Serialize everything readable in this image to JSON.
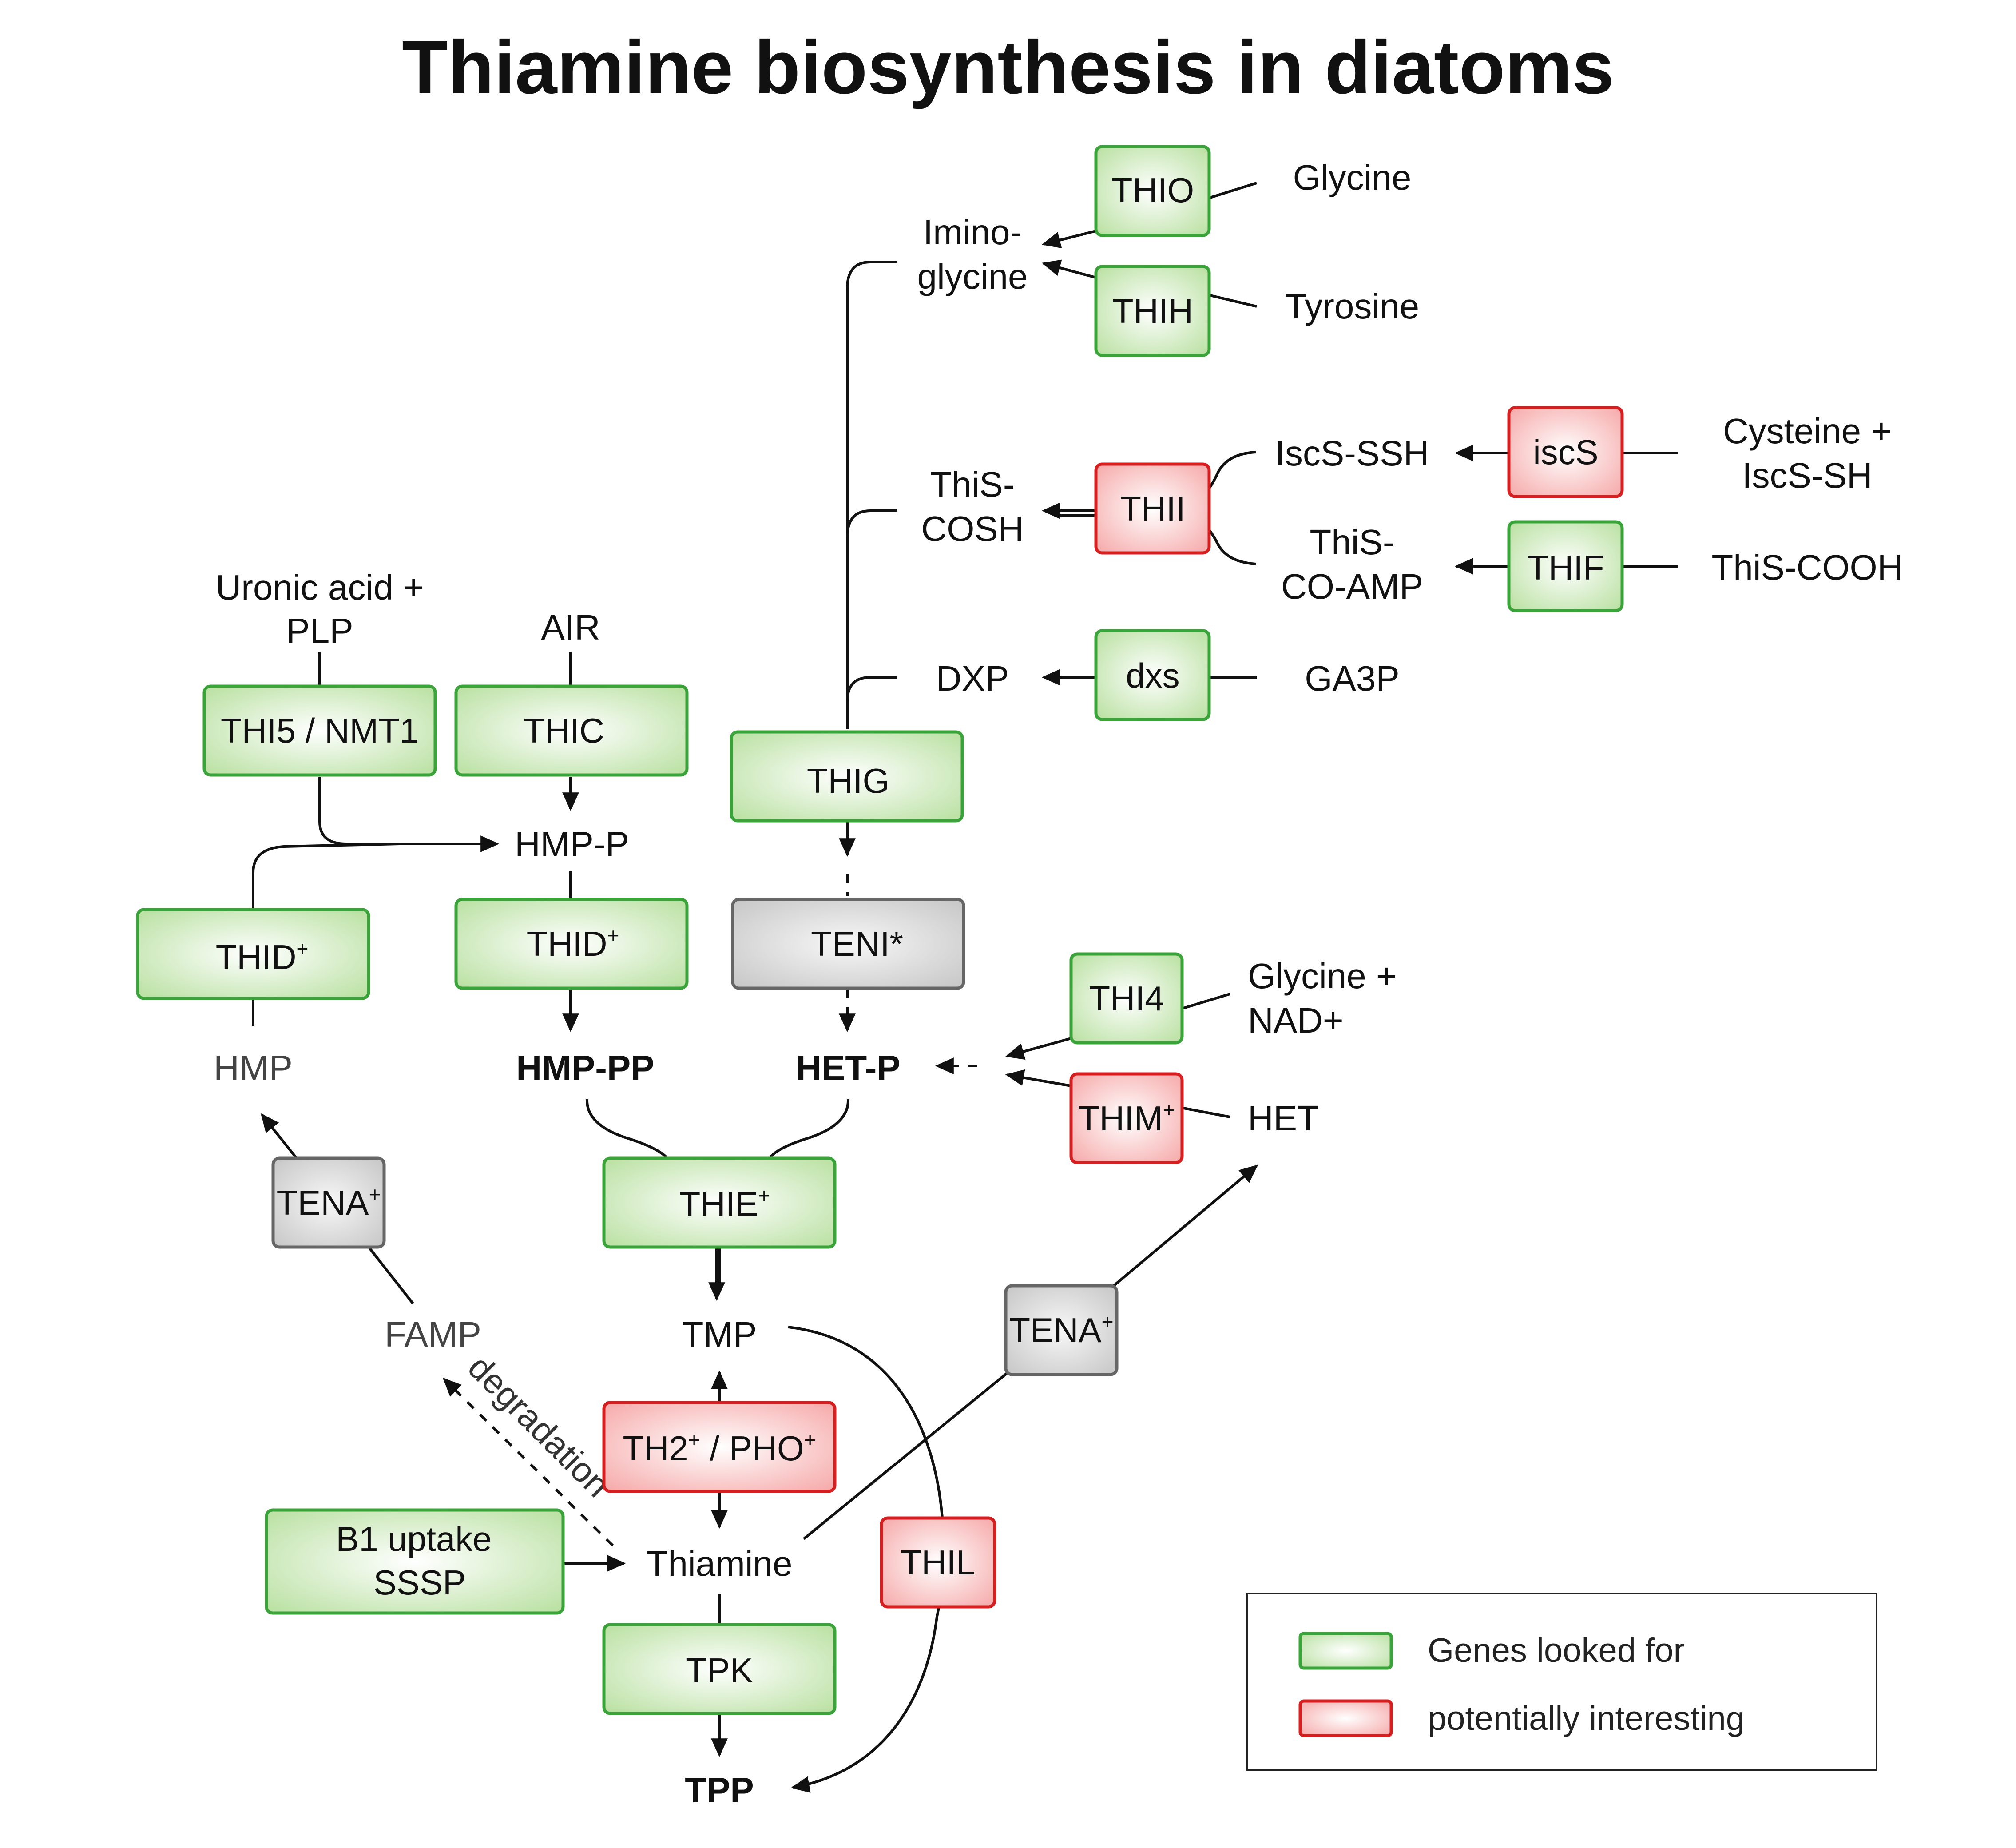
{
  "title": "Thiamine biosynthesis in diatoms",
  "colors": {
    "green_border": "#3aa33a",
    "green_fill_center": "#ffffff",
    "green_fill_edge": "#b8e0a0",
    "red_border": "#d42020",
    "red_fill_center": "#ffffff",
    "red_fill_edge": "#f6a8a8",
    "grey_border": "#666666",
    "grey_fill_center": "#f7f7f7",
    "grey_fill_edge": "#c6c6c6"
  },
  "genes": {
    "thio": "THIO",
    "thih": "THIH",
    "thii": "THII",
    "iscs": "iscS",
    "thif": "THIF",
    "dxs": "dxs",
    "thi5": "THI5 / NMT1",
    "thic": "THIC",
    "thig": "THIG",
    "thid_left": "THID",
    "thid_mid": "THID",
    "teni": "TENI*",
    "thi4": "THI4",
    "thim": "THIM",
    "tena_left": "TENA",
    "thie": "THIE",
    "tena_right": "TENA",
    "th2": "TH2",
    "th2_sep": " / PHO",
    "thil": "THIL",
    "b1_line1": "B1 uptake",
    "b1_line2": "SSSP",
    "tpk": "TPK",
    "plus": "+"
  },
  "compounds": {
    "glycine": "Glycine",
    "tyrosine": "Tyrosine",
    "imino_line1": "Imino-",
    "imino_line2": "glycine",
    "iscs_ssh": "IscS-SSH",
    "cysteine_line1": "Cysteine +",
    "cysteine_line2": "IscS-SH",
    "this_cosh_line1": "ThiS-",
    "this_cosh_line2": "COSH",
    "this_coamp_line1": "ThiS-",
    "this_coamp_line2": "CO-AMP",
    "this_cooh": "ThiS-COOH",
    "dxp": "DXP",
    "ga3p": "GA3P",
    "uronic_line1": "Uronic acid +",
    "uronic_line2": "PLP",
    "air": "AIR",
    "hmp_p": "HMP-P",
    "hmp": "HMP",
    "hmp_pp": "HMP-PP",
    "het_p": "HET-P",
    "glycine_nad_line1": "Glycine +",
    "glycine_nad_line2": "NAD+",
    "het": "HET",
    "famp": "FAMP",
    "tmp": "TMP",
    "thiamine": "Thiamine",
    "tpp": "TPP",
    "degradation": "degradation"
  },
  "legend": {
    "genes_looked_for": "Genes looked for",
    "potentially_interesting": "potentially interesting"
  }
}
